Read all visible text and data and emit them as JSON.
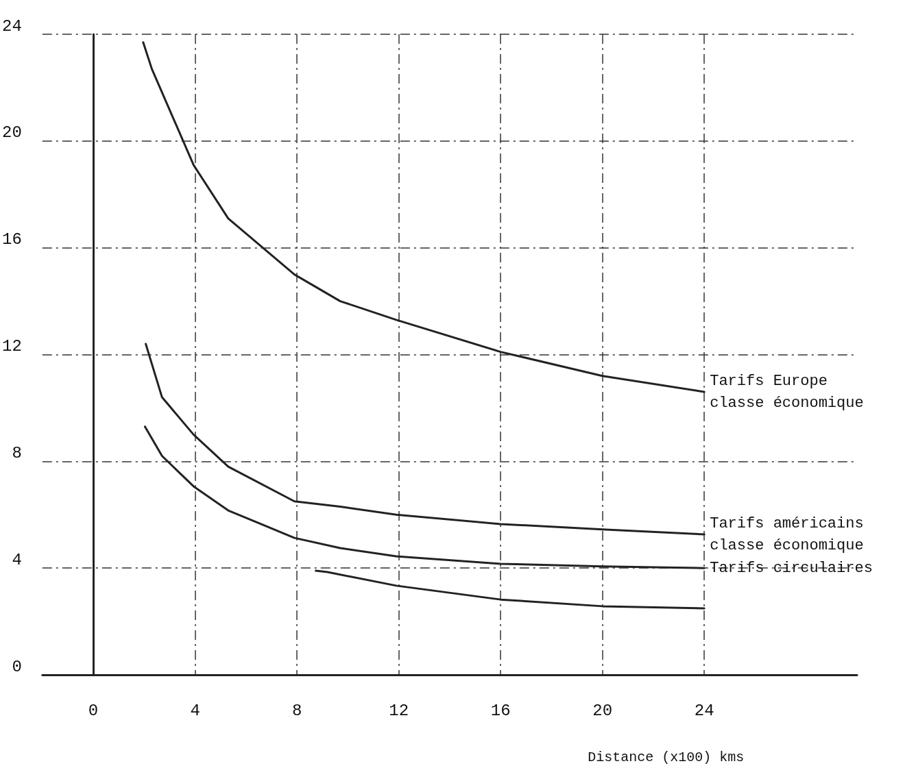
{
  "chart_data": {
    "type": "line",
    "xlabel": "Distance (x100) kms",
    "xlim": [
      -2,
      30
    ],
    "ylim": [
      0,
      24
    ],
    "xticks": [
      0,
      4,
      8,
      12,
      16,
      20,
      24
    ],
    "yticks": [
      0,
      4,
      8,
      12,
      16,
      20,
      24
    ],
    "grid": true,
    "legend": false,
    "marker": "none",
    "line_style": "solid",
    "series": [
      {
        "name": "Tarifs Europe\nclasse économique",
        "color": "#222222",
        "x": [
          1.96,
          2.3,
          3.94,
          5.3,
          7.9,
          9.7,
          11.9,
          16,
          20,
          24
        ],
        "values": [
          23.7,
          22.7,
          19.1,
          17.1,
          15.0,
          14.0,
          13.3,
          12.1,
          11.2,
          10.6
        ]
      },
      {
        "name": "Tarifs américains\nclasse économique",
        "color": "#222222",
        "x": [
          2.06,
          2.7,
          3.94,
          5.3,
          7.9,
          9.7,
          11.9,
          16,
          20,
          24
        ],
        "values": [
          12.4,
          10.4,
          9.0,
          7.8,
          6.5,
          6.3,
          6.0,
          5.65,
          5.45,
          5.26
        ]
      },
      {
        "name": "Tarifs circulaires",
        "color": "#222222",
        "x": [
          2.03,
          2.7,
          3.94,
          5.3,
          7.9,
          9.7,
          11.9,
          16,
          20,
          24
        ],
        "values": [
          9.3,
          8.2,
          7.06,
          6.16,
          5.13,
          4.75,
          4.44,
          4.16,
          4.06,
          4.0
        ]
      },
      {
        "color": "#222222",
        "x": [
          8.74,
          9.2,
          11.9,
          16,
          20,
          24
        ],
        "values": [
          3.9,
          3.85,
          3.34,
          2.82,
          2.57,
          2.49
        ]
      }
    ]
  }
}
